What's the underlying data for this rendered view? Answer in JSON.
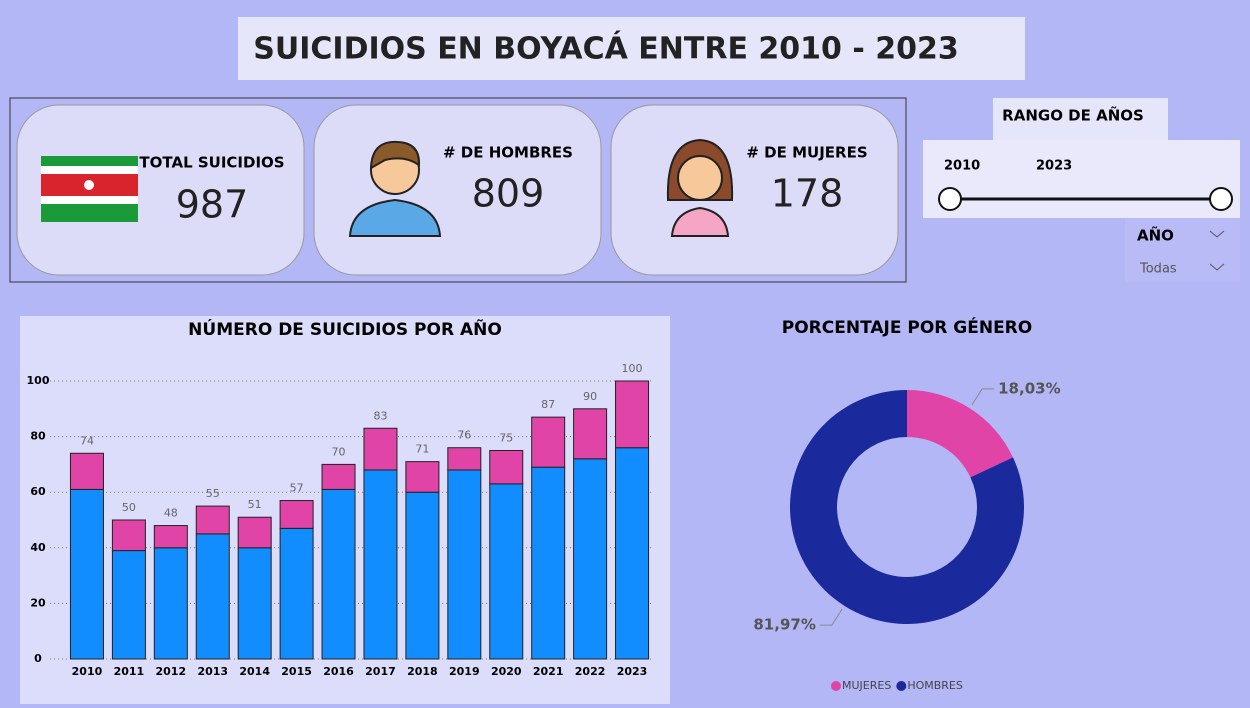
{
  "header": {
    "title": "SUICIDIOS EN BOYACÁ ENTRE 2010 - 2023"
  },
  "cards": [
    {
      "label": "TOTAL SUICIDIOS",
      "value": 987
    },
    {
      "label": "# DE HOMBRES",
      "value": 809
    },
    {
      "label": "# DE MUJERES",
      "value": 178
    }
  ],
  "slicer": {
    "title": "RANGO DE AÑOS",
    "start": "2010",
    "end": "2023",
    "dropdown_label": "AÑO",
    "dropdown_value": "Todas"
  },
  "chart_data": [
    {
      "type": "bar",
      "stacked": true,
      "title": "NÚMERO DE SUICIDIOS POR AÑO",
      "categories": [
        "2010",
        "2011",
        "2012",
        "2013",
        "2014",
        "2015",
        "2016",
        "2017",
        "2018",
        "2019",
        "2020",
        "2021",
        "2022",
        "2023"
      ],
      "series": [
        {
          "color": "#118dff",
          "values": [
            61,
            39,
            40,
            45,
            40,
            47,
            61,
            68,
            60,
            68,
            63,
            69,
            72,
            76
          ]
        },
        {
          "color": "#e044a7",
          "values": [
            13,
            11,
            8,
            10,
            11,
            10,
            9,
            15,
            11,
            8,
            12,
            18,
            18,
            24
          ]
        }
      ],
      "total_labels": [
        74,
        50,
        48,
        55,
        51,
        57,
        70,
        83,
        71,
        76,
        75,
        87,
        90,
        100
      ],
      "ylim": [
        0,
        100
      ],
      "yticks": [
        0,
        20,
        40,
        60,
        80,
        100
      ],
      "grid": true
    },
    {
      "type": "donut",
      "title": "PORCENTAJE POR GÉNERO",
      "categories": [
        "MUJERES",
        "HOMBRES"
      ],
      "values": [
        18.03,
        81.97
      ],
      "value_labels": [
        "18,03%",
        "81,97%"
      ],
      "colors": [
        "#e044a7",
        "#1a2a9c"
      ],
      "legend": "bottom"
    }
  ]
}
